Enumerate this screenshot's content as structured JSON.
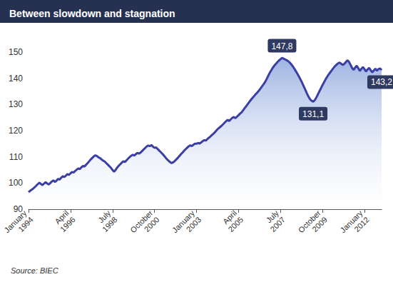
{
  "chart_data": {
    "type": "line",
    "title": "Between slowdown and stagnation",
    "source": "Source: BIEC",
    "color": "#3b3ea3",
    "grid": false,
    "ylim": [
      90,
      150
    ],
    "yticks": [
      90,
      100,
      110,
      120,
      130,
      140,
      150
    ],
    "categories": [
      "January 1994",
      null,
      null,
      null,
      null,
      null,
      null,
      null,
      null,
      null,
      null,
      null,
      null,
      null,
      null,
      null,
      null,
      null,
      null,
      null,
      null,
      null,
      null,
      null,
      null,
      null,
      null,
      "April 1996",
      null,
      null,
      null,
      null,
      null,
      null,
      null,
      null,
      null,
      null,
      null,
      null,
      null,
      null,
      null,
      null,
      null,
      null,
      null,
      null,
      null,
      null,
      null,
      null,
      null,
      null,
      "July 1998",
      null,
      null,
      null,
      null,
      null,
      null,
      null,
      null,
      null,
      null,
      null,
      null,
      null,
      null,
      null,
      null,
      null,
      null,
      null,
      null,
      null,
      null,
      null,
      null,
      null,
      null,
      "October 2000",
      null,
      null,
      null,
      null,
      null,
      null,
      null,
      null,
      null,
      null,
      null,
      null,
      null,
      null,
      null,
      null,
      null,
      null,
      null,
      null,
      null,
      null,
      null,
      null,
      null,
      null,
      "January 2003",
      null,
      null,
      null,
      null,
      null,
      null,
      null,
      null,
      null,
      null,
      null,
      null,
      null,
      null,
      null,
      null,
      null,
      null,
      null,
      null,
      null,
      null,
      null,
      null,
      null,
      null,
      "April 2005",
      null,
      null,
      null,
      null,
      null,
      null,
      null,
      null,
      null,
      null,
      null,
      null,
      null,
      null,
      null,
      null,
      null,
      null,
      null,
      null,
      null,
      null,
      null,
      null,
      null,
      null,
      "July 2007",
      null,
      null,
      null,
      null,
      null,
      null,
      null,
      null,
      null,
      null,
      null,
      null,
      null,
      null,
      null,
      null,
      null,
      null,
      null,
      null,
      null,
      null,
      null,
      null,
      null,
      null,
      "October 2009",
      null,
      null,
      null,
      null,
      null,
      null,
      null,
      null,
      null,
      null,
      null,
      null,
      null,
      null,
      null,
      null,
      null,
      null,
      null,
      null,
      null,
      null,
      null,
      null,
      null,
      null,
      "January 2012",
      null,
      null,
      null,
      null,
      null,
      null,
      null,
      null,
      null,
      null,
      null
    ],
    "values": [
      96.5,
      97.0,
      97.4,
      97.9,
      98.4,
      99.0,
      99.6,
      100.1,
      99.6,
      99.2,
      99.8,
      100.3,
      99.8,
      99.4,
      100.0,
      100.6,
      101.0,
      100.4,
      100.9,
      101.6,
      101.3,
      102.0,
      102.6,
      102.3,
      102.8,
      103.4,
      103.1,
      103.7,
      104.2,
      104.0,
      104.6,
      105.1,
      105.6,
      105.3,
      106.0,
      106.5,
      106.3,
      107.0,
      107.6,
      108.3,
      109.0,
      109.6,
      110.2,
      110.6,
      110.3,
      109.8,
      109.5,
      109.0,
      108.5,
      108.2,
      107.6,
      107.0,
      106.4,
      105.8,
      105.0,
      104.3,
      105.0,
      105.9,
      106.6,
      107.2,
      107.8,
      108.3,
      108.0,
      108.7,
      109.3,
      109.9,
      110.4,
      110.8,
      110.5,
      111.0,
      111.5,
      111.2,
      111.6,
      112.2,
      112.8,
      113.4,
      114.0,
      114.3,
      114.1,
      114.5,
      113.9,
      113.4,
      113.6,
      113.0,
      112.4,
      111.8,
      111.2,
      110.5,
      109.8,
      109.1,
      108.5,
      108.0,
      107.6,
      107.9,
      108.4,
      109.0,
      109.6,
      110.3,
      111.0,
      111.6,
      112.3,
      112.9,
      113.5,
      114.0,
      114.4,
      114.1,
      114.6,
      115.0,
      115.0,
      115.3,
      115.1,
      115.5,
      116.0,
      116.4,
      116.2,
      116.8,
      117.3,
      117.8,
      118.4,
      118.9,
      119.5,
      120.2,
      120.8,
      121.3,
      121.8,
      122.4,
      123.0,
      123.6,
      124.1,
      123.7,
      124.3,
      124.9,
      125.2,
      124.8,
      125.3,
      125.9,
      126.5,
      127.0,
      127.8,
      128.6,
      129.4,
      130.2,
      131.0,
      131.8,
      132.5,
      133.2,
      133.9,
      134.5,
      135.2,
      136.0,
      136.8,
      137.6,
      138.5,
      139.6,
      140.8,
      142.0,
      143.0,
      144.0,
      144.8,
      145.5,
      146.2,
      146.8,
      147.3,
      147.8,
      147.5,
      147.2,
      146.9,
      146.5,
      146.0,
      145.3,
      144.5,
      143.6,
      142.6,
      141.6,
      140.5,
      139.4,
      138.2,
      136.9,
      135.6,
      134.2,
      133.0,
      132.0,
      131.4,
      131.1,
      131.6,
      132.6,
      133.8,
      135.0,
      136.2,
      137.4,
      138.5,
      139.6,
      140.6,
      141.5,
      142.3,
      143.1,
      143.9,
      144.6,
      145.2,
      145.7,
      146.0,
      145.6,
      145.1,
      145.5,
      146.2,
      146.9,
      146.3,
      145.2,
      144.0,
      143.2,
      144.1,
      144.8,
      143.9,
      142.8,
      143.6,
      144.3,
      143.5,
      142.6,
      143.4,
      144.0,
      143.1,
      142.3,
      143.0,
      143.7,
      142.9,
      143.5,
      143.8,
      143.2
    ],
    "annotations": [
      {
        "index": 163,
        "value": 147.8,
        "label": "147,8"
      },
      {
        "index": 183,
        "value": 131.1,
        "label": "131,1"
      },
      {
        "index": 227,
        "value": 143.2,
        "label": "143,2"
      }
    ]
  }
}
